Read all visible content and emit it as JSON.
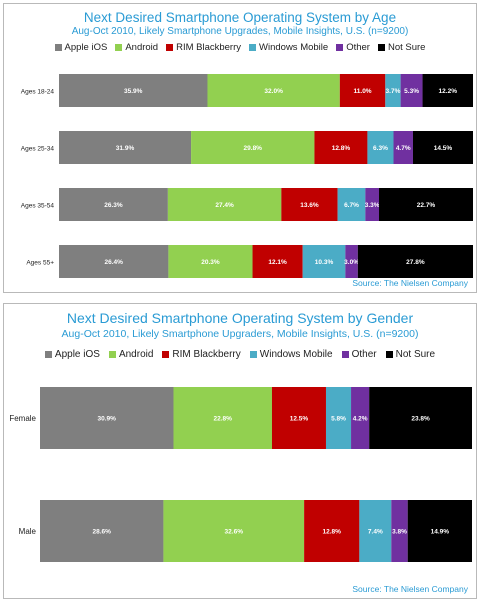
{
  "chart_data": [
    {
      "type": "bar",
      "orientation": "horizontal",
      "stacked": true,
      "title": "Next Desired Smartphone Operating System by Age",
      "subtitle": "Aug-Oct 2010, Likely Smartphone Upgrades, Mobile Insights, U.S. (n=9200)",
      "source": "Source: The Nielsen Company",
      "legend_position": "top",
      "grid": false,
      "categories": [
        "Ages 18-24",
        "Ages 25-34",
        "Ages 35-54",
        "Ages 55+"
      ],
      "series": [
        {
          "name": "Apple iOS",
          "color": "#7f7f7f",
          "values": [
            35.9,
            31.9,
            26.3,
            26.4
          ],
          "labels": [
            "35.9%",
            "31.9%",
            "26.3%",
            "26.4%"
          ]
        },
        {
          "name": "Android",
          "color": "#92d050",
          "values": [
            32.0,
            29.8,
            27.4,
            20.3
          ],
          "labels": [
            "32.0%",
            "29.8%",
            "27.4%",
            "20.3%"
          ]
        },
        {
          "name": "RIM Blackberry",
          "color": "#c00000",
          "values": [
            11.0,
            12.8,
            13.6,
            12.1
          ],
          "labels": [
            "11.0%",
            "12.8%",
            "13.6%",
            "12.1%"
          ]
        },
        {
          "name": "Windows Mobile",
          "color": "#4bacc6",
          "values": [
            3.7,
            6.3,
            6.7,
            10.3
          ],
          "labels": [
            "3.7%",
            "6.3%",
            "6.7%",
            "10.3%"
          ]
        },
        {
          "name": "Other",
          "color": "#7030a0",
          "values": [
            5.3,
            4.7,
            3.3,
            3.0
          ],
          "labels": [
            "5.3%",
            "4.7%",
            "3.3%",
            "3.0%"
          ]
        },
        {
          "name": "Not Sure",
          "color": "#000000",
          "values": [
            12.2,
            14.5,
            22.7,
            27.8
          ],
          "labels": [
            "12.2%",
            "14.5%",
            "22.7%",
            "27.8%"
          ]
        }
      ]
    },
    {
      "type": "bar",
      "orientation": "horizontal",
      "stacked": true,
      "title": "Next Desired Smartphone Operating System by Gender",
      "subtitle": "Aug-Oct 2010, Likely Smartphone Upgraders, Mobile Insights, U.S. (n=9200)",
      "source": "Source: The Nielsen Company",
      "legend_position": "top",
      "grid": false,
      "categories": [
        "Female",
        "Male"
      ],
      "series": [
        {
          "name": "Apple iOS",
          "color": "#7f7f7f",
          "values": [
            30.9,
            28.6
          ],
          "labels": [
            "30.9%",
            "28.6%"
          ]
        },
        {
          "name": "Android",
          "color": "#92d050",
          "values": [
            22.8,
            32.6
          ],
          "labels": [
            "22.8%",
            "32.6%"
          ]
        },
        {
          "name": "RIM Blackberry",
          "color": "#c00000",
          "values": [
            12.5,
            12.8
          ],
          "labels": [
            "12.5%",
            "12.8%"
          ]
        },
        {
          "name": "Windows Mobile",
          "color": "#4bacc6",
          "values": [
            5.8,
            7.4
          ],
          "labels": [
            "5.8%",
            "7.4%"
          ]
        },
        {
          "name": "Other",
          "color": "#7030a0",
          "values": [
            4.2,
            3.8
          ],
          "labels": [
            "4.2%",
            "3.8%"
          ]
        },
        {
          "name": "Not Sure",
          "color": "#000000",
          "values": [
            23.8,
            14.9
          ],
          "labels": [
            "23.8%",
            "14.9%"
          ]
        }
      ]
    }
  ]
}
